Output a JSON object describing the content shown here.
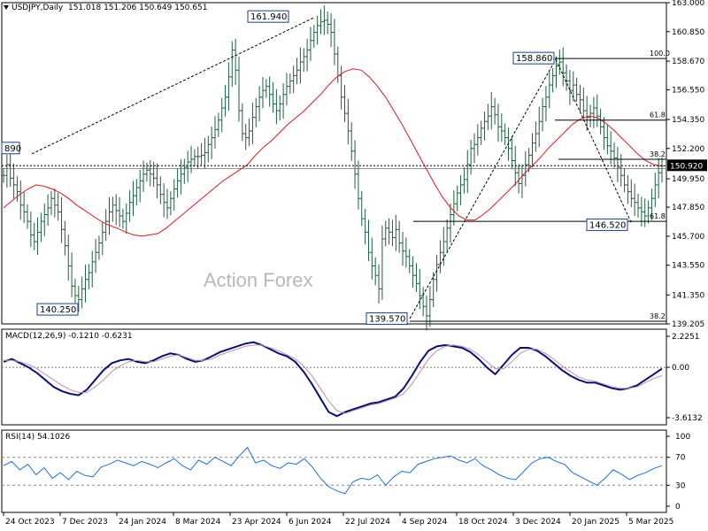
{
  "chart_data": [
    {
      "type": "ohlc",
      "symbol_title": "USDJPY,Daily",
      "ohlc_readout": "151.018 151.206 150.649 150.651",
      "watermark": "Action Forex",
      "y_ticks": [
        "163.000",
        "160.850",
        "158.670",
        "156.550",
        "154.350",
        "152.200",
        "149.950",
        "147.850",
        "145.700",
        "143.550",
        "141.350",
        "139.205"
      ],
      "ylim": [
        139.205,
        163.0
      ],
      "x_ticks": [
        "24 Oct 2023",
        "7 Dec 2023",
        "24 Jan 2024",
        "8 Mar 2024",
        "23 Apr 2024",
        "6 Jun 2024",
        "22 Jul 2024",
        "4 Sep 2024",
        "18 Oct 2024",
        "3 Dec 2024",
        "20 Jan 2025",
        "5 Mar 2025"
      ],
      "current_price": "150.920",
      "price_label_colors": {
        "up_box": "#000000",
        "current": "#000000"
      },
      "close_series": [
        150.2,
        151.0,
        150.0,
        149.5,
        149.0,
        148.0,
        147.5,
        146.8,
        145.8,
        145.3,
        146.0,
        146.8,
        147.3,
        147.8,
        148.5,
        148.0,
        147.5,
        146.2,
        145.0,
        143.5,
        142.0,
        141.3,
        141.0,
        141.8,
        142.5,
        143.0,
        143.8,
        144.5,
        145.2,
        146.0,
        146.8,
        147.5,
        148.0,
        147.6,
        147.2,
        146.8,
        147.4,
        148.2,
        148.7,
        149.3,
        149.8,
        150.3,
        150.6,
        150.3,
        150.0,
        149.5,
        148.8,
        148.2,
        147.8,
        148.5,
        149.2,
        149.8,
        150.3,
        150.8,
        151.2,
        151.4,
        151.6,
        151.6,
        151.7,
        151.9,
        152.5,
        153.0,
        153.6,
        154.3,
        155.2,
        156.0,
        157.5,
        159.5,
        158.0,
        155.0,
        153.3,
        153.0,
        153.5,
        154.5,
        155.3,
        156.0,
        156.5,
        156.8,
        156.2,
        155.5,
        155.0,
        155.5,
        156.2,
        156.8,
        157.2,
        157.6,
        158.0,
        158.6,
        159.0,
        159.5,
        160.2,
        160.8,
        161.3,
        161.6,
        161.7,
        161.4,
        160.8,
        159.2,
        157.6,
        156.0,
        154.8,
        153.5,
        152.0,
        150.3,
        148.5,
        147.0,
        146.0,
        144.5,
        143.5,
        142.8,
        141.8,
        145.5,
        146.3,
        146.0,
        145.6,
        146.2,
        145.2,
        144.6,
        144.2,
        143.5,
        142.8,
        142.2,
        141.3,
        140.5,
        139.8,
        141.0,
        142.5,
        143.6,
        144.5,
        145.3,
        146.3,
        147.3,
        148.1,
        148.9,
        149.5,
        149.9,
        151.0,
        152.2,
        152.5,
        153.0,
        153.7,
        154.2,
        154.6,
        155.3,
        154.7,
        153.8,
        153.5,
        153.0,
        152.2,
        151.3,
        150.4,
        149.6,
        150.2,
        151.0,
        151.7,
        152.6,
        153.3,
        154.2,
        155.3,
        156.0,
        156.9,
        157.6,
        158.3,
        158.6,
        157.8,
        157.2,
        156.5,
        156.9,
        156.2,
        155.8,
        155.0,
        154.5,
        154.8,
        155.2,
        154.6,
        153.8,
        153.0,
        152.4,
        152.0,
        151.5,
        150.8,
        150.2,
        149.5,
        149.0,
        148.5,
        148.2,
        147.8,
        147.5,
        147.2,
        147.8,
        148.5,
        149.5,
        150.4,
        150.9
      ],
      "sma_series": [
        147.8,
        148.3,
        148.8,
        149.2,
        149.5,
        149.4,
        149.2,
        148.9,
        148.5,
        148.0,
        147.6,
        147.2,
        146.8,
        146.5,
        146.3,
        146.0,
        145.8,
        145.7,
        145.8,
        145.9,
        146.3,
        146.8,
        147.3,
        147.8,
        148.3,
        148.8,
        149.3,
        149.8,
        150.2,
        150.6,
        151.0,
        151.7,
        152.3,
        152.8,
        153.4,
        154.0,
        154.5,
        155.0,
        155.6,
        156.2,
        156.9,
        157.5,
        157.9,
        158.1,
        158.0,
        157.5,
        156.8,
        156.0,
        155.0,
        154.0,
        152.9,
        151.8,
        150.7,
        149.6,
        148.6,
        147.8,
        147.2,
        146.9,
        146.9,
        147.3,
        147.8,
        148.4,
        149.0,
        149.6,
        150.3,
        150.9,
        151.5,
        152.2,
        152.8,
        153.4,
        154.0,
        154.4,
        154.6,
        154.5,
        154.1,
        153.6,
        153.0,
        152.4,
        151.8,
        151.3,
        151.0,
        150.9
      ],
      "labels": [
        {
          "text": "161.940",
          "kind": "swing-high"
        },
        {
          "text": "140.250",
          "kind": "swing-low"
        },
        {
          "text": "139.570",
          "kind": "swing-low"
        },
        {
          "text": "158.860",
          "kind": "swing-high"
        },
        {
          "text": "146.520",
          "kind": "swing-low"
        },
        {
          "text": "890",
          "kind": "edge-high"
        }
      ],
      "fib_levels": [
        {
          "text": "100.0",
          "price": 158.86
        },
        {
          "text": "61.8",
          "price": 154.3
        },
        {
          "text": "38.2",
          "price": 151.4
        },
        {
          "text": "61.8",
          "price": 146.8
        },
        {
          "text": "38.2",
          "price": 139.4
        }
      ],
      "colors": {
        "bars": "#1f5f3f",
        "sma": "#e0181e",
        "fib": "#000000",
        "ref_dotted": "#000000"
      }
    },
    {
      "type": "line",
      "title": "MACD(12,26,9) -0.1210 -0.6231",
      "y_ticks": [
        "2.2251",
        "0.00",
        "-3.6132"
      ],
      "ylim": [
        -3.6132,
        2.2251
      ],
      "series": [
        {
          "values": [
            0.4,
            0.6,
            0.3,
            0.0,
            -0.4,
            -0.9,
            -1.4,
            -1.7,
            -1.9,
            -2.0,
            -1.6,
            -0.9,
            -0.2,
            0.3,
            0.5,
            0.6,
            0.4,
            0.3,
            0.5,
            0.8,
            1.0,
            0.9,
            0.6,
            0.4,
            0.5,
            0.8,
            1.1,
            1.3,
            1.5,
            1.7,
            1.8,
            1.6,
            1.3,
            1.0,
            0.8,
            0.4,
            -0.3,
            -1.2,
            -2.2,
            -3.2,
            -3.5,
            -3.2,
            -3.0,
            -2.8,
            -2.6,
            -2.5,
            -2.3,
            -2.1,
            -1.5,
            -0.6,
            0.4,
            1.2,
            1.5,
            1.6,
            1.5,
            1.4,
            1.1,
            0.6,
            0.0,
            -0.5,
            0.2,
            0.9,
            1.4,
            1.4,
            1.2,
            0.8,
            0.3,
            -0.2,
            -0.6,
            -0.9,
            -1.1,
            -1.1,
            -1.3,
            -1.5,
            -1.6,
            -1.5,
            -1.3,
            -0.9,
            -0.5,
            -0.1
          ]
        },
        {
          "values": [
            0.5,
            0.5,
            0.4,
            0.2,
            -0.1,
            -0.5,
            -0.9,
            -1.3,
            -1.6,
            -1.8,
            -1.8,
            -1.4,
            -0.9,
            -0.3,
            0.1,
            0.4,
            0.5,
            0.4,
            0.4,
            0.6,
            0.8,
            0.9,
            0.7,
            0.5,
            0.5,
            0.6,
            0.9,
            1.1,
            1.3,
            1.5,
            1.6,
            1.6,
            1.4,
            1.2,
            0.9,
            0.6,
            0.1,
            -0.6,
            -1.5,
            -2.4,
            -3.1,
            -3.3,
            -3.1,
            -2.9,
            -2.7,
            -2.6,
            -2.4,
            -2.2,
            -1.9,
            -1.2,
            -0.3,
            0.6,
            1.2,
            1.5,
            1.6,
            1.5,
            1.3,
            0.9,
            0.4,
            -0.1,
            -0.1,
            0.4,
            1.0,
            1.3,
            1.3,
            1.0,
            0.6,
            0.1,
            -0.3,
            -0.7,
            -0.9,
            -1.0,
            -1.2,
            -1.4,
            -1.5,
            -1.5,
            -1.4,
            -1.1,
            -0.8,
            -0.6
          ]
        }
      ],
      "colors": {
        "macd": "#08107a",
        "signal": "#c090a8",
        "zero": "#7a7a7a"
      }
    },
    {
      "type": "line",
      "title": "RSI(14) 54.1026",
      "y_ticks": [
        "100",
        "70",
        "30",
        "0"
      ],
      "ylim": [
        0,
        100
      ],
      "levels": [
        70,
        30
      ],
      "series": [
        {
          "values": [
            58,
            64,
            52,
            60,
            45,
            55,
            40,
            48,
            38,
            50,
            44,
            42,
            56,
            60,
            66,
            62,
            58,
            64,
            60,
            55,
            62,
            68,
            58,
            52,
            66,
            60,
            70,
            64,
            58,
            72,
            84,
            62,
            66,
            58,
            54,
            62,
            60,
            68,
            56,
            40,
            28,
            22,
            18,
            35,
            40,
            38,
            45,
            30,
            42,
            50,
            48,
            60,
            64,
            68,
            70,
            72,
            66,
            62,
            68,
            58,
            52,
            45,
            40,
            38,
            50,
            62,
            68,
            70,
            64,
            60,
            48,
            42,
            36,
            30,
            40,
            52,
            46,
            38,
            44,
            48,
            54,
            58
          ]
        }
      ],
      "colors": {
        "rsi": "#1e6fd8",
        "levels": "#8a8a8a"
      }
    }
  ]
}
